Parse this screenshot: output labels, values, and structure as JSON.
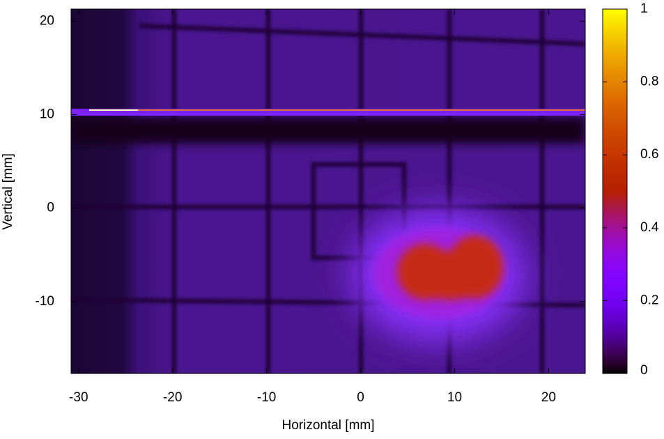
{
  "chart_data": {
    "type": "heatmap",
    "xlabel": "Horizontal [mm]",
    "ylabel": "Vertical [mm]",
    "xlim": [
      -30.8,
      23.9
    ],
    "ylim": [
      -17.7,
      21.3
    ],
    "xticks": [
      -30,
      -20,
      -10,
      0,
      10,
      20
    ],
    "yticks": [
      -10,
      0,
      10,
      20
    ],
    "colorbar": {
      "lim": [
        0,
        1
      ],
      "ticks": [
        0,
        0.2,
        0.4,
        0.6,
        0.8,
        1
      ]
    }
  }
}
